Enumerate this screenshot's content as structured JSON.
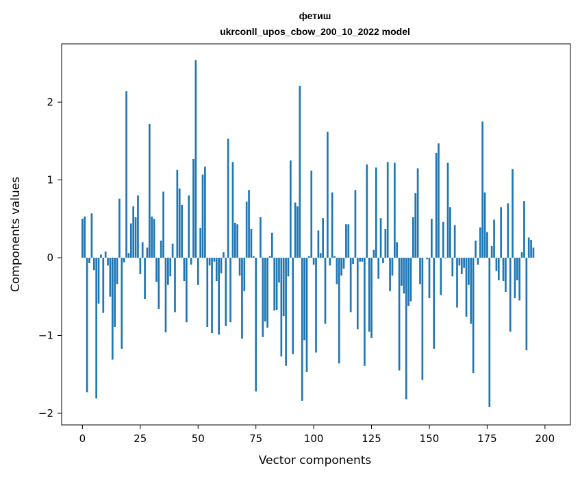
{
  "chart_data": {
    "type": "bar",
    "title": "фетиш",
    "subtitle": "ukrconll_upos_cbow_200_10_2022 model",
    "xlabel": "Vector components",
    "ylabel": "Components values",
    "xlim": [
      -9,
      211
    ],
    "ylim": [
      -2.15,
      2.75
    ],
    "xticks": [
      0,
      25,
      50,
      75,
      100,
      125,
      150,
      175,
      200
    ],
    "yticks": [
      -2,
      -1,
      0,
      1,
      2
    ],
    "ytick_labels": [
      "−2",
      "−1",
      "0",
      "1",
      "2"
    ],
    "grid": false,
    "color": "#1f77b4",
    "values": [
      0.5,
      0.53,
      -1.73,
      -0.07,
      0.57,
      -0.16,
      -1.81,
      -0.59,
      0.04,
      -0.71,
      0.08,
      -0.1,
      -0.5,
      -1.31,
      -0.89,
      -0.34,
      0.76,
      -1.17,
      -0.06,
      2.14,
      0.06,
      0.44,
      0.66,
      0.52,
      0.8,
      -0.21,
      0.2,
      -0.53,
      0.13,
      1.72,
      0.53,
      0.5,
      -0.31,
      -0.66,
      0.22,
      0.85,
      -0.96,
      -0.35,
      -0.24,
      0.18,
      -0.7,
      1.13,
      0.89,
      0.68,
      -0.3,
      -0.83,
      0.8,
      -0.09,
      1.27,
      2.54,
      -0.35,
      0.38,
      1.07,
      1.17,
      -0.89,
      -0.1,
      -0.97,
      -0.05,
      -0.3,
      -0.99,
      -0.2,
      0.07,
      -0.88,
      1.53,
      -0.83,
      1.23,
      0.45,
      0.43,
      -0.23,
      -1.04,
      -0.43,
      0.72,
      0.87,
      0.37,
      0.02,
      -1.72,
      0.0,
      0.52,
      -1.02,
      -0.82,
      -0.9,
      0.02,
      0.32,
      -0.68,
      -0.67,
      -0.32,
      -1.27,
      -0.75,
      -1.39,
      -0.24,
      1.25,
      -1.24,
      0.71,
      0.66,
      2.21,
      -1.84,
      -1.06,
      -1.47,
      0.02,
      1.12,
      -0.09,
      -1.22,
      0.35,
      0.06,
      0.51,
      -0.85,
      1.62,
      -0.1,
      0.84,
      0.02,
      -0.34,
      -1.36,
      -0.23,
      -0.14,
      0.43,
      0.43,
      -0.7,
      -0.08,
      0.87,
      -0.92,
      -0.05,
      -0.05,
      -1.39,
      1.2,
      -0.95,
      -1.03,
      0.1,
      1.16,
      -0.27,
      0.51,
      -0.07,
      0.37,
      1.23,
      -0.43,
      -0.23,
      1.22,
      0.2,
      -1.45,
      -0.36,
      -0.46,
      -1.82,
      -0.62,
      -0.56,
      0.52,
      0.83,
      1.15,
      -0.34,
      -1.57,
      0.0,
      -0.02,
      -0.52,
      0.5,
      -1.17,
      1.35,
      1.47,
      -0.48,
      0.46,
      -0.01,
      1.22,
      0.65,
      -0.24,
      0.42,
      -0.64,
      -0.1,
      -0.21,
      -0.13,
      -0.76,
      -0.35,
      -0.85,
      -1.48,
      0.22,
      -0.09,
      0.39,
      1.75,
      0.84,
      0.33,
      -1.92,
      0.15,
      0.49,
      -0.17,
      -0.29,
      0.65,
      -0.3,
      -0.44,
      0.7,
      -0.95,
      1.14,
      -0.52,
      -0.29,
      -0.55,
      0.07,
      0.73,
      -1.19,
      0.26,
      0.23,
      0.13
    ]
  }
}
